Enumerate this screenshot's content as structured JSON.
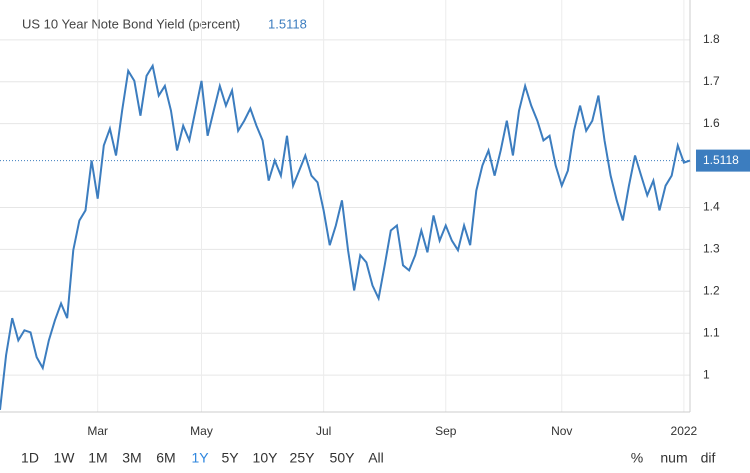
{
  "chart_data": {
    "type": "line",
    "title": "US 10 Year Note Bond Yield (percent)",
    "series": [
      {
        "name": "US 10 Year Note Bond Yield",
        "color": "#3c7dbf",
        "values": [
          0.917,
          1.048,
          1.136,
          1.083,
          1.107,
          1.102,
          1.043,
          1.017,
          1.083,
          1.131,
          1.171,
          1.136,
          1.298,
          1.369,
          1.393,
          1.512,
          1.421,
          1.548,
          1.588,
          1.524,
          1.631,
          1.726,
          1.702,
          1.619,
          1.714,
          1.738,
          1.667,
          1.69,
          1.631,
          1.536,
          1.595,
          1.56,
          1.631,
          1.702,
          1.571,
          1.631,
          1.69,
          1.643,
          1.679,
          1.583,
          1.607,
          1.636,
          1.595,
          1.56,
          1.464,
          1.512,
          1.476,
          1.571,
          1.452,
          1.488,
          1.524,
          1.476,
          1.46,
          1.393,
          1.31,
          1.357,
          1.417,
          1.298,
          1.202,
          1.286,
          1.269,
          1.214,
          1.183,
          1.262,
          1.345,
          1.357,
          1.262,
          1.25,
          1.286,
          1.345,
          1.293,
          1.381,
          1.321,
          1.357,
          1.321,
          1.298,
          1.357,
          1.31,
          1.44,
          1.5,
          1.536,
          1.476,
          1.536,
          1.607,
          1.524,
          1.631,
          1.69,
          1.643,
          1.607,
          1.56,
          1.571,
          1.5,
          1.452,
          1.488,
          1.583,
          1.643,
          1.583,
          1.607,
          1.667,
          1.56,
          1.476,
          1.417,
          1.369,
          1.452,
          1.524,
          1.476,
          1.429,
          1.464,
          1.393,
          1.452,
          1.476,
          1.548,
          1.507,
          1.5118
        ]
      }
    ],
    "xlim": [
      0,
      113
    ],
    "xticks": [
      {
        "value": 16,
        "label": "Mar"
      },
      {
        "value": 33,
        "label": "May"
      },
      {
        "value": 53,
        "label": "Jul"
      },
      {
        "value": 73,
        "label": "Sep"
      },
      {
        "value": 92,
        "label": "Nov"
      },
      {
        "value": 112,
        "label": "2022"
      }
    ],
    "ylim": [
      0.912,
      1.895
    ],
    "yticks": [
      1.8,
      1.7,
      1.6,
      1.4,
      1.3,
      1.2,
      1.1,
      1
    ],
    "grid": true
  },
  "controls": {
    "ranges": [
      "1D",
      "1W",
      "1M",
      "3M",
      "6M",
      "1Y",
      "5Y",
      "10Y",
      "25Y",
      "50Y",
      "All"
    ],
    "active": "1Y",
    "modes": [
      "%",
      "num",
      "dif"
    ]
  }
}
